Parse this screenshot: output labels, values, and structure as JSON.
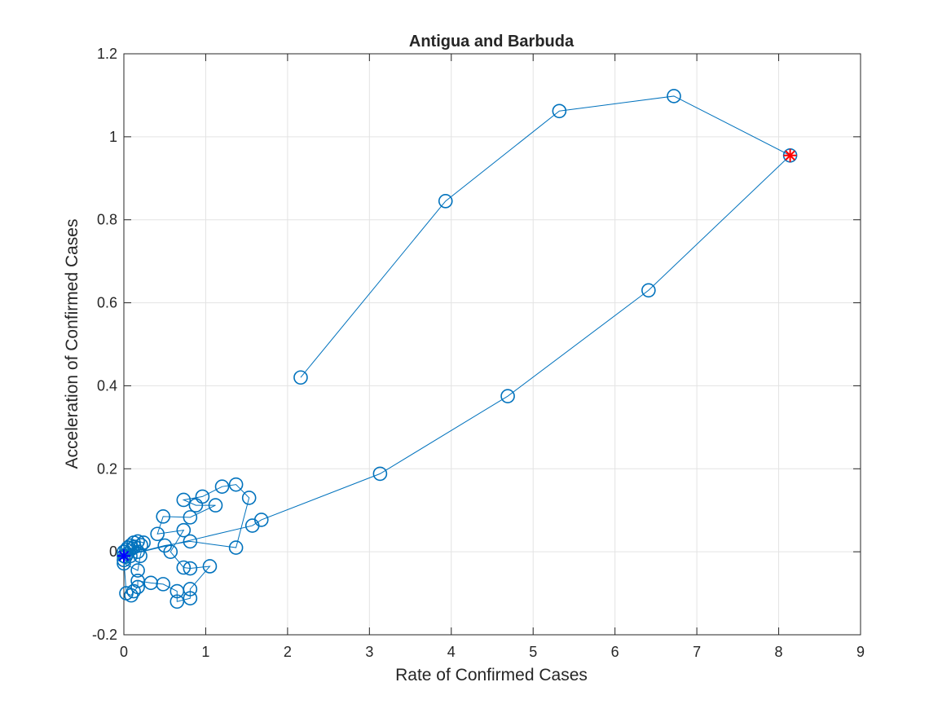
{
  "chart_data": {
    "type": "scatter",
    "title": "Antigua and Barbuda",
    "xlabel": "Rate of Confirmed Cases",
    "ylabel": "Acceleration of Confirmed Cases",
    "xlim": [
      0,
      9
    ],
    "ylim": [
      -0.2,
      1.2
    ],
    "xticks": [
      0,
      1,
      2,
      3,
      4,
      5,
      6,
      7,
      8,
      9
    ],
    "yticks": [
      -0.2,
      0,
      0.2,
      0.4,
      0.6,
      0.8,
      1,
      1.2
    ],
    "xtick_labels": [
      "0",
      "1",
      "2",
      "3",
      "4",
      "5",
      "6",
      "7",
      "8",
      "9"
    ],
    "ytick_labels": [
      "-0.2",
      "0",
      "0.2",
      "0.4",
      "0.6",
      "0.8",
      "1",
      "1.2"
    ],
    "grid": true,
    "series": [
      {
        "marker": "circle-line",
        "color": "#0072BD",
        "points": [
          [
            2.16,
            0.42
          ],
          [
            3.93,
            0.845
          ],
          [
            5.32,
            1.062
          ],
          [
            6.72,
            1.098
          ],
          [
            8.14,
            0.955
          ],
          [
            6.41,
            0.63
          ],
          [
            4.69,
            0.375
          ],
          [
            3.13,
            0.188
          ],
          [
            1.68,
            0.077
          ],
          [
            1.57,
            0.063
          ],
          [
            0.0,
            -0.01
          ],
          [
            0.5,
            0.015
          ],
          [
            0.81,
            0.025
          ],
          [
            1.37,
            0.01
          ],
          [
            1.53,
            0.13
          ],
          [
            1.37,
            0.162
          ],
          [
            1.2,
            0.157
          ],
          [
            0.96,
            0.133
          ],
          [
            0.73,
            0.125
          ],
          [
            0.88,
            0.112
          ],
          [
            1.12,
            0.112
          ],
          [
            0.81,
            0.083
          ],
          [
            0.48,
            0.085
          ],
          [
            0.41,
            0.043
          ],
          [
            0.73,
            0.052
          ],
          [
            0.57,
            0.0
          ],
          [
            0.73,
            -0.038
          ],
          [
            0.81,
            -0.04
          ],
          [
            1.05,
            -0.035
          ],
          [
            0.81,
            -0.09
          ],
          [
            0.81,
            -0.112
          ],
          [
            0.65,
            -0.12
          ],
          [
            0.65,
            -0.095
          ],
          [
            0.48,
            -0.078
          ],
          [
            0.33,
            -0.075
          ],
          [
            0.17,
            -0.07
          ],
          [
            0.17,
            -0.085
          ],
          [
            0.12,
            -0.095
          ],
          [
            0.09,
            -0.105
          ],
          [
            0.03,
            -0.1
          ],
          [
            0.0,
            -0.02
          ],
          [
            0.0,
            -0.028
          ],
          [
            0.17,
            -0.045
          ],
          [
            0.2,
            -0.01
          ],
          [
            0.24,
            0.022
          ],
          [
            0.17,
            0.025
          ],
          [
            0.12,
            0.022
          ],
          [
            0.08,
            0.015
          ],
          [
            0.05,
            0.01
          ],
          [
            0.03,
            0.005
          ],
          [
            0.17,
            0.0
          ],
          [
            0.08,
            -0.01
          ],
          [
            0.13,
            0.012
          ],
          [
            0.21,
            0.016
          ],
          [
            0.1,
            0.008
          ],
          [
            0.04,
            -0.005
          ],
          [
            0.02,
            -0.012
          ],
          [
            0.0,
            0.0
          ]
        ]
      }
    ],
    "markers": [
      {
        "label": "start",
        "symbol": "asterisk",
        "color": "#0000FF",
        "x": 0.0,
        "y": -0.01
      },
      {
        "label": "end",
        "symbol": "asterisk",
        "color": "#FF0000",
        "x": 8.14,
        "y": 0.955
      }
    ]
  }
}
